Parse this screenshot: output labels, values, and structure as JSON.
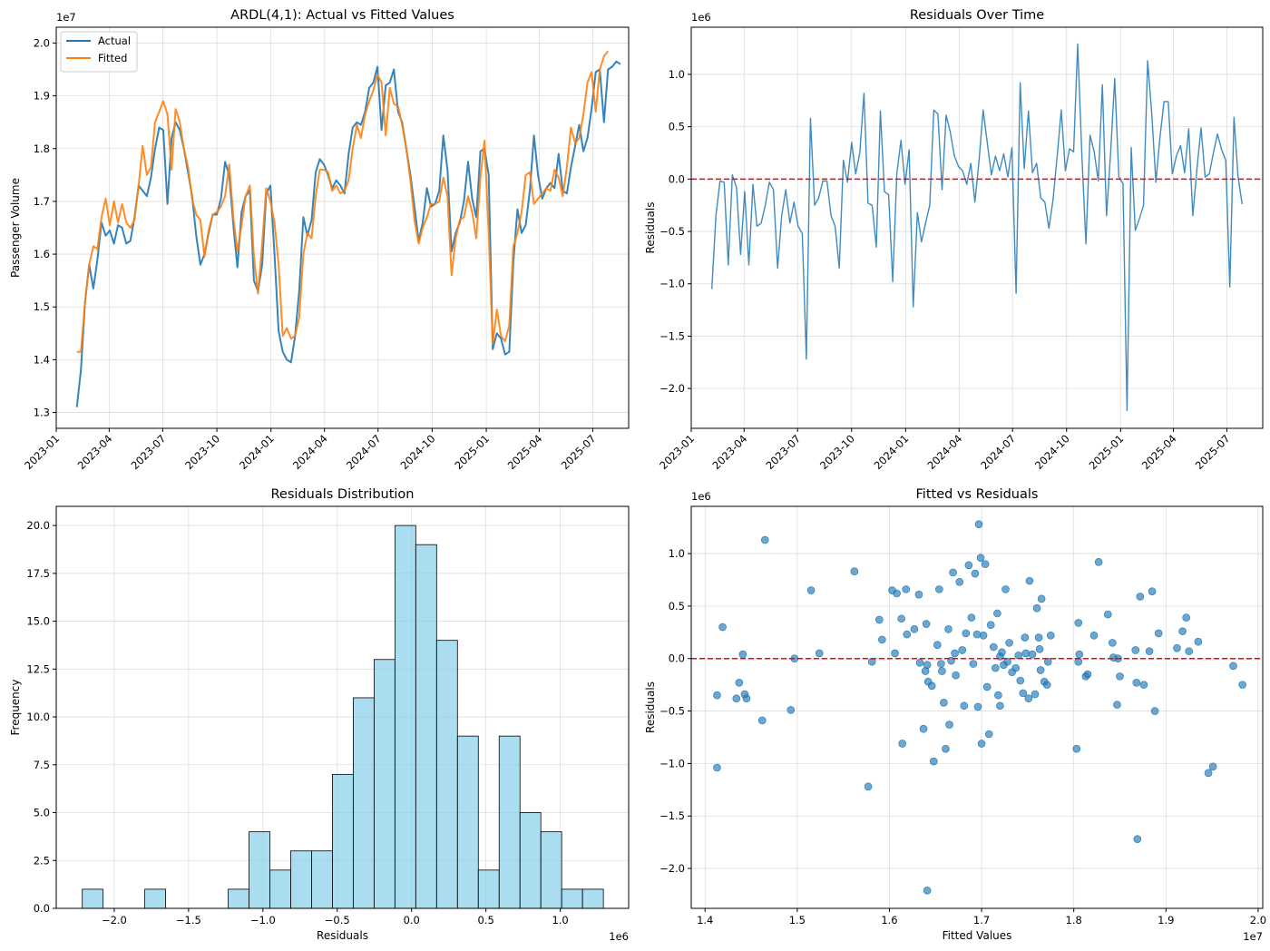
{
  "chart_data": [
    {
      "id": "p1",
      "type": "line",
      "title": "ARDL(4,1): Actual vs Fitted Values",
      "xlabel": "",
      "ylabel": "Passenger Volume",
      "y_offset_label": "1e7",
      "x_is_date": true,
      "x_start": "2023-02-05",
      "x_step_days": 7,
      "xlim": [
        "2023-01-01",
        "2025-08-31"
      ],
      "ylim": [
        1.27,
        2.03
      ],
      "xticks": [
        "2023-01",
        "2023-04",
        "2023-07",
        "2023-10",
        "2024-01",
        "2024-04",
        "2024-07",
        "2024-10",
        "2025-01",
        "2025-04",
        "2025-07"
      ],
      "yticks": [
        1.3,
        1.4,
        1.5,
        1.6,
        1.7,
        1.8,
        1.9,
        2.0
      ],
      "ytick_labels": [
        "1.3",
        "1.4",
        "1.5",
        "1.6",
        "1.7",
        "1.8",
        "1.9",
        "2.0"
      ],
      "legend": "top-left",
      "series": [
        {
          "name": "Actual",
          "color": "#1f77b4",
          "values": [
            1.31,
            1.38,
            1.51,
            1.58,
            1.535,
            1.59,
            1.66,
            1.635,
            1.645,
            1.62,
            1.655,
            1.65,
            1.62,
            1.625,
            1.67,
            1.73,
            1.72,
            1.71,
            1.745,
            1.8,
            1.84,
            1.835,
            1.695,
            1.82,
            1.85,
            1.835,
            1.8,
            1.755,
            1.71,
            1.635,
            1.58,
            1.6,
            1.64,
            1.675,
            1.675,
            1.705,
            1.775,
            1.75,
            1.655,
            1.575,
            1.68,
            1.71,
            1.72,
            1.55,
            1.53,
            1.58,
            1.715,
            1.73,
            1.6,
            1.455,
            1.415,
            1.4,
            1.395,
            1.445,
            1.53,
            1.67,
            1.635,
            1.665,
            1.755,
            1.78,
            1.77,
            1.75,
            1.725,
            1.74,
            1.73,
            1.715,
            1.79,
            1.84,
            1.85,
            1.845,
            1.87,
            1.915,
            1.925,
            1.955,
            1.835,
            1.92,
            1.925,
            1.95,
            1.87,
            1.85,
            1.8,
            1.75,
            1.69,
            1.625,
            1.66,
            1.725,
            1.69,
            1.695,
            1.72,
            1.825,
            1.76,
            1.605,
            1.64,
            1.66,
            1.7,
            1.775,
            1.705,
            1.67,
            1.795,
            1.8,
            1.75,
            1.42,
            1.45,
            1.44,
            1.41,
            1.415,
            1.585,
            1.685,
            1.64,
            1.655,
            1.72,
            1.825,
            1.75,
            1.705,
            1.725,
            1.735,
            1.725,
            1.79,
            1.72,
            1.715,
            1.765,
            1.805,
            1.845,
            1.795,
            1.82,
            1.875,
            1.945,
            1.95,
            1.85,
            1.95,
            1.955,
            1.965,
            1.96
          ]
        },
        {
          "name": "Fitted",
          "color": "#ff7f0e",
          "values": [
            1.415,
            1.415,
            1.51,
            1.58,
            1.615,
            1.61,
            1.67,
            1.705,
            1.655,
            1.7,
            1.66,
            1.695,
            1.66,
            1.65,
            1.665,
            1.73,
            1.805,
            1.75,
            1.765,
            1.85,
            1.87,
            1.89,
            1.865,
            1.76,
            1.875,
            1.85,
            1.8,
            1.765,
            1.705,
            1.675,
            1.665,
            1.595,
            1.645,
            1.675,
            1.68,
            1.69,
            1.71,
            1.77,
            1.67,
            1.605,
            1.655,
            1.71,
            1.73,
            1.595,
            1.525,
            1.62,
            1.725,
            1.7,
            1.66,
            1.58,
            1.445,
            1.46,
            1.44,
            1.445,
            1.48,
            1.6,
            1.64,
            1.63,
            1.71,
            1.76,
            1.76,
            1.755,
            1.72,
            1.73,
            1.715,
            1.72,
            1.74,
            1.8,
            1.845,
            1.82,
            1.865,
            1.89,
            1.91,
            1.94,
            1.925,
            1.825,
            1.915,
            1.885,
            1.88,
            1.845,
            1.8,
            1.74,
            1.665,
            1.62,
            1.65,
            1.67,
            1.695,
            1.695,
            1.7,
            1.745,
            1.71,
            1.56,
            1.63,
            1.665,
            1.67,
            1.71,
            1.68,
            1.63,
            1.745,
            1.815,
            1.64,
            1.43,
            1.495,
            1.445,
            1.435,
            1.465,
            1.615,
            1.64,
            1.68,
            1.75,
            1.755,
            1.695,
            1.705,
            1.715,
            1.725,
            1.72,
            1.76,
            1.745,
            1.71,
            1.765,
            1.84,
            1.81,
            1.82,
            1.865,
            1.925,
            1.945,
            1.87,
            1.95,
            1.975,
            1.985
          ]
        }
      ]
    },
    {
      "id": "p2",
      "type": "line",
      "title": "Residuals Over Time",
      "xlabel": "",
      "ylabel": "Residuals",
      "y_offset_label": "1e6",
      "x_is_date": true,
      "x_start": "2023-02-05",
      "x_step_days": 7,
      "xlim": [
        "2023-01-01",
        "2025-08-31"
      ],
      "ylim": [
        -2.38,
        1.45
      ],
      "xticks": [
        "2023-01",
        "2023-04",
        "2023-07",
        "2023-10",
        "2024-01",
        "2024-04",
        "2024-07",
        "2024-10",
        "2025-01",
        "2025-04",
        "2025-07"
      ],
      "yticks": [
        -2.0,
        -1.5,
        -1.0,
        -0.5,
        0.0,
        0.5,
        1.0
      ],
      "ytick_labels": [
        "−2.0",
        "−1.5",
        "−1.0",
        "−0.5",
        "0.0",
        "0.5",
        "1.0"
      ],
      "hline": 0,
      "series": [
        {
          "name": "",
          "color": "#1f77b4",
          "values": [
            -1.05,
            -0.35,
            -0.02,
            -0.03,
            -0.82,
            0.04,
            -0.08,
            -0.72,
            -0.12,
            -0.82,
            -0.05,
            -0.45,
            -0.42,
            -0.25,
            -0.03,
            -0.1,
            -0.85,
            -0.35,
            -0.1,
            -0.42,
            -0.22,
            -0.45,
            -0.52,
            -1.72,
            0.58,
            -0.25,
            -0.18,
            -0.02,
            -0.02,
            -0.35,
            -0.45,
            -0.85,
            0.18,
            -0.03,
            0.35,
            0.05,
            0.25,
            0.82,
            -0.23,
            -0.25,
            -0.65,
            0.65,
            -0.12,
            -0.15,
            -0.98,
            0.05,
            0.37,
            -0.05,
            0.28,
            -1.22,
            -0.32,
            -0.6,
            -0.42,
            -0.25,
            0.66,
            0.62,
            -0.1,
            0.61,
            0.45,
            0.22,
            0.12,
            0.08,
            -0.05,
            0.15,
            -0.22,
            0.18,
            0.66,
            0.35,
            0.04,
            0.22,
            0.08,
            0.24,
            0.02,
            0.3,
            -1.09,
            0.92,
            0.1,
            0.65,
            0.06,
            0.15,
            -0.18,
            -0.22,
            -0.47,
            -0.2,
            0.22,
            0.66,
            0.08,
            0.29,
            0.26,
            1.29,
            0.23,
            -0.62,
            0.42,
            0.26,
            -0.02,
            0.9,
            -0.35,
            0.25,
            0.96,
            0.02,
            -0.04,
            -2.21,
            0.3,
            -0.49,
            -0.38,
            -0.25,
            1.13,
            0.63,
            -0.03,
            0.4,
            0.74,
            0.74,
            0.05,
            0.22,
            0.32,
            0.06,
            0.48,
            -0.35,
            0.1,
            0.49,
            0.02,
            0.05,
            0.25,
            0.43,
            0.28,
            0.18,
            -1.03,
            0.59,
            0.02,
            -0.24
          ]
        }
      ]
    },
    {
      "id": "p3",
      "type": "bar",
      "title": "Residuals Distribution",
      "xlabel": "Residuals",
      "ylabel": "Frequency",
      "x_offset_label": "1e6",
      "bin_start": -2.215,
      "bin_width": 0.1402,
      "xlim": [
        -2.39,
        1.46
      ],
      "ylim": [
        0,
        21.0
      ],
      "xticks": [
        -2.0,
        -1.5,
        -1.0,
        -0.5,
        0.0,
        0.5,
        1.0
      ],
      "xtick_labels": [
        "−2.0",
        "−1.5",
        "−1.0",
        "−0.5",
        "0.0",
        "0.5",
        "1.0"
      ],
      "yticks": [
        0.0,
        2.5,
        5.0,
        7.5,
        10.0,
        12.5,
        15.0,
        17.5,
        20.0
      ],
      "ytick_labels": [
        "0.0",
        "2.5",
        "5.0",
        "7.5",
        "10.0",
        "12.5",
        "15.0",
        "17.5",
        "20.0"
      ],
      "fill": "#87ceeb",
      "values": [
        1,
        0,
        0,
        1,
        0,
        0,
        0,
        1,
        4,
        2,
        3,
        3,
        7,
        11,
        13,
        20,
        19,
        14,
        9,
        2,
        9,
        5,
        4,
        1,
        1
      ]
    },
    {
      "id": "p4",
      "type": "scatter",
      "title": "Fitted vs Residuals",
      "xlabel": "Fitted Values",
      "ylabel": "Residuals",
      "x_offset_label": "1e7",
      "y_offset_label": "1e6",
      "xlim": [
        1.385,
        2.005
      ],
      "ylim": [
        -2.38,
        1.45
      ],
      "xticks": [
        1.4,
        1.5,
        1.6,
        1.7,
        1.8,
        1.9,
        2.0
      ],
      "xtick_labels": [
        "1.4",
        "1.5",
        "1.6",
        "1.7",
        "1.8",
        "1.9",
        "2.0"
      ],
      "yticks": [
        -2.0,
        -1.5,
        -1.0,
        -0.5,
        0.0,
        0.5,
        1.0
      ],
      "ytick_labels": [
        "−2.0",
        "−1.5",
        "−1.0",
        "−0.5",
        "0.0",
        "0.5",
        "1.0"
      ],
      "hline": 0,
      "color": "#1f77b4",
      "points": [
        [
          1.413,
          -0.35
        ],
        [
          1.413,
          -1.04
        ],
        [
          1.419,
          0.3
        ],
        [
          1.434,
          -0.38
        ],
        [
          1.437,
          -0.23
        ],
        [
          1.441,
          0.04
        ],
        [
          1.443,
          -0.34
        ],
        [
          1.445,
          -0.38
        ],
        [
          1.462,
          -0.59
        ],
        [
          1.465,
          1.13
        ],
        [
          1.493,
          -0.49
        ],
        [
          1.497,
          0.0
        ],
        [
          1.515,
          0.65
        ],
        [
          1.524,
          0.05
        ],
        [
          1.562,
          0.83
        ],
        [
          1.577,
          -1.22
        ],
        [
          1.581,
          -0.03
        ],
        [
          1.589,
          0.37
        ],
        [
          1.592,
          0.18
        ],
        [
          1.603,
          0.65
        ],
        [
          1.606,
          0.05
        ],
        [
          1.608,
          0.62
        ],
        [
          1.613,
          0.38
        ],
        [
          1.614,
          -0.81
        ],
        [
          1.618,
          0.66
        ],
        [
          1.619,
          0.23
        ],
        [
          1.627,
          0.28
        ],
        [
          1.632,
          0.61
        ],
        [
          1.633,
          -0.04
        ],
        [
          1.637,
          -0.67
        ],
        [
          1.639,
          -0.12
        ],
        [
          1.641,
          -0.06
        ],
        [
          1.642,
          -0.22
        ],
        [
          1.64,
          0.33
        ],
        [
          1.641,
          -2.21
        ],
        [
          1.646,
          -0.26
        ],
        [
          1.648,
          -0.98
        ],
        [
          1.652,
          0.13
        ],
        [
          1.654,
          0.66
        ],
        [
          1.656,
          -0.05
        ],
        [
          1.657,
          -0.12
        ],
        [
          1.659,
          -0.42
        ],
        [
          1.661,
          -0.86
        ],
        [
          1.664,
          0.28
        ],
        [
          1.665,
          -0.63
        ],
        [
          1.667,
          -0.02
        ],
        [
          1.669,
          0.82
        ],
        [
          1.671,
          0.05
        ],
        [
          1.672,
          -0.16
        ],
        [
          1.676,
          0.73
        ],
        [
          1.679,
          0.08
        ],
        [
          1.681,
          -0.45
        ],
        [
          1.683,
          0.24
        ],
        [
          1.686,
          0.89
        ],
        [
          1.689,
          0.39
        ],
        [
          1.691,
          -0.05
        ],
        [
          1.693,
          0.81
        ],
        [
          1.695,
          0.23
        ],
        [
          1.696,
          -0.46
        ],
        [
          1.697,
          1.28
        ],
        [
          1.699,
          0.96
        ],
        [
          1.7,
          -0.81
        ],
        [
          1.702,
          0.22
        ],
        [
          1.704,
          0.9
        ],
        [
          1.706,
          -0.27
        ],
        [
          1.708,
          -0.72
        ],
        [
          1.71,
          0.32
        ],
        [
          1.713,
          0.11
        ],
        [
          1.715,
          -0.09
        ],
        [
          1.717,
          0.43
        ],
        [
          1.718,
          -0.35
        ],
        [
          1.72,
          -0.45
        ],
        [
          1.72,
          0.02
        ],
        [
          1.722,
          0.06
        ],
        [
          1.724,
          -0.06
        ],
        [
          1.726,
          0.66
        ],
        [
          1.728,
          -0.03
        ],
        [
          1.73,
          0.15
        ],
        [
          1.733,
          -0.13
        ],
        [
          1.737,
          -0.09
        ],
        [
          1.74,
          0.03
        ],
        [
          1.742,
          -0.21
        ],
        [
          1.745,
          -0.33
        ],
        [
          1.747,
          0.2
        ],
        [
          1.748,
          0.05
        ],
        [
          1.751,
          -0.38
        ],
        [
          1.752,
          0.74
        ],
        [
          1.755,
          0.04
        ],
        [
          1.758,
          -0.34
        ],
        [
          1.76,
          0.48
        ],
        [
          1.762,
          0.2
        ],
        [
          1.763,
          0.09
        ],
        [
          1.764,
          -0.11
        ],
        [
          1.765,
          0.57
        ],
        [
          1.768,
          -0.22
        ],
        [
          1.771,
          -0.25
        ],
        [
          1.772,
          -0.03
        ],
        [
          1.775,
          0.22
        ],
        [
          1.803,
          -0.86
        ],
        [
          1.805,
          0.34
        ],
        [
          1.805,
          -0.03
        ],
        [
          1.806,
          0.04
        ],
        [
          1.813,
          -0.17
        ],
        [
          1.815,
          -0.15
        ],
        [
          1.822,
          0.22
        ],
        [
          1.827,
          0.92
        ],
        [
          1.837,
          0.42
        ],
        [
          1.842,
          0.15
        ],
        [
          1.843,
          0.01
        ],
        [
          1.847,
          -0.44
        ],
        [
          1.848,
          0.0
        ],
        [
          1.85,
          -0.17
        ],
        [
          1.867,
          0.08
        ],
        [
          1.868,
          -0.23
        ],
        [
          1.869,
          -1.72
        ],
        [
          1.872,
          0.59
        ],
        [
          1.876,
          -0.25
        ],
        [
          1.882,
          0.07
        ],
        [
          1.885,
          0.64
        ],
        [
          1.888,
          -0.5
        ],
        [
          1.892,
          0.24
        ],
        [
          1.912,
          0.1
        ],
        [
          1.918,
          0.26
        ],
        [
          1.922,
          0.39
        ],
        [
          1.925,
          0.07
        ],
        [
          1.935,
          0.16
        ],
        [
          1.946,
          -1.09
        ],
        [
          1.951,
          -1.03
        ],
        [
          1.973,
          -0.07
        ],
        [
          1.983,
          -0.25
        ]
      ]
    }
  ]
}
